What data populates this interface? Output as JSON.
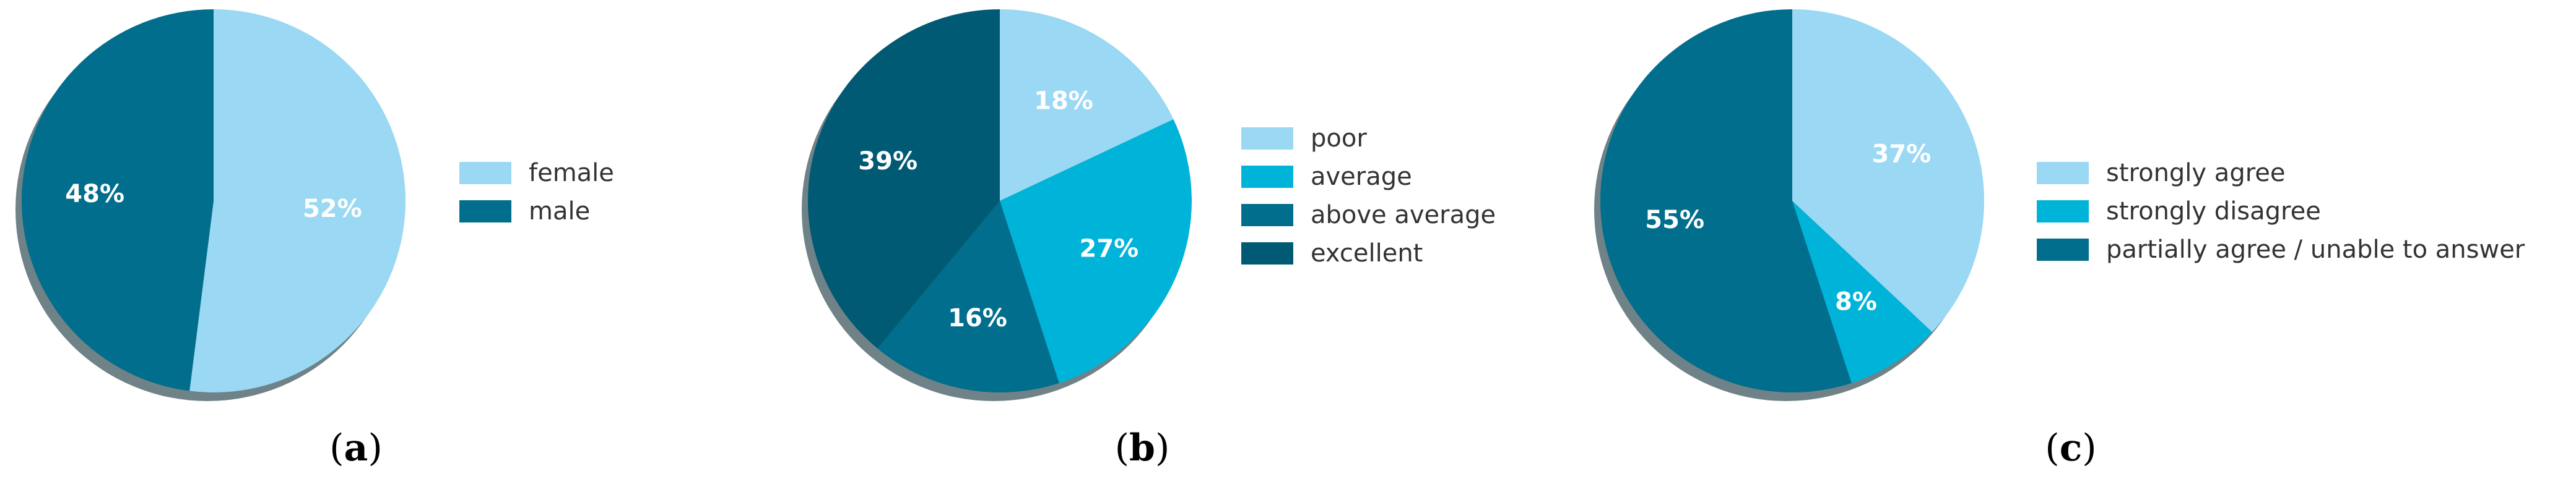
{
  "colors": {
    "light_blue": "#9ad8f4",
    "cyan": "#00b3d9",
    "teal": "#006e8c",
    "dark_teal": "#005a73",
    "shadow": "#6f8287"
  },
  "chart_data": [
    {
      "type": "pie",
      "caption": {
        "open": "(",
        "letter": "a",
        "close": ")"
      },
      "slices": [
        {
          "label": "female",
          "value": 52,
          "pct_label": "52%",
          "color": "#9ad8f4"
        },
        {
          "label": "male",
          "value": 48,
          "pct_label": "48%",
          "color": "#006e8c"
        }
      ],
      "legend_placement": "right"
    },
    {
      "type": "pie",
      "caption": {
        "open": "(",
        "letter": "b",
        "close": ")"
      },
      "slices": [
        {
          "label": "poor",
          "value": 18,
          "pct_label": "18%",
          "color": "#9ad8f4"
        },
        {
          "label": "average",
          "value": 27,
          "pct_label": "27%",
          "color": "#00b3d9"
        },
        {
          "label": "above average",
          "value": 16,
          "pct_label": "16%",
          "color": "#006e8c"
        },
        {
          "label": "excellent",
          "value": 39,
          "pct_label": "39%",
          "color": "#005a73"
        }
      ],
      "legend_placement": "right"
    },
    {
      "type": "pie",
      "caption": {
        "open": "(",
        "letter": "c",
        "close": ")"
      },
      "slices": [
        {
          "label": "strongly agree",
          "value": 37,
          "pct_label": "37%",
          "color": "#9ad8f4"
        },
        {
          "label": "strongly disagree",
          "value": 8,
          "pct_label": "8%",
          "color": "#00b3d9"
        },
        {
          "label": "partially agree / unable to answer",
          "value": 55,
          "pct_label": "55%",
          "color": "#006e8c"
        }
      ],
      "legend_placement": "right"
    }
  ]
}
